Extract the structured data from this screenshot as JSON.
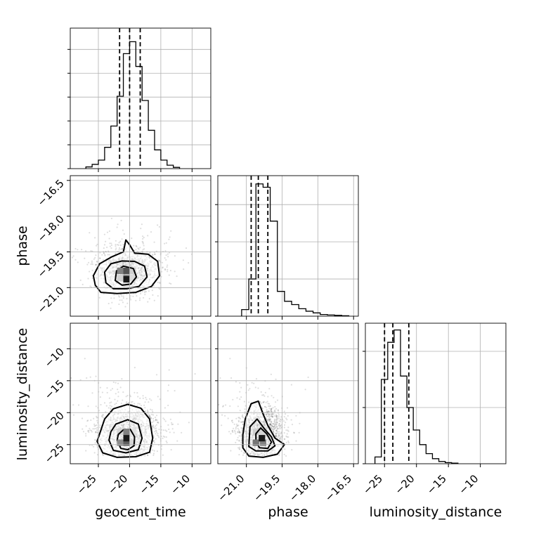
{
  "chart_data": {
    "type": "scatter",
    "title": "",
    "parameters": [
      "geocent_time",
      "phase",
      "luminosity_distance"
    ],
    "axis_labels": {
      "geocent_time": "geocent_time",
      "phase": "phase",
      "luminosity_distance": "luminosity_distance"
    },
    "ranges": {
      "geocent_time": [
        -29.5,
        -7.0
      ],
      "phase": [
        -22.2,
        -16.3
      ],
      "luminosity_distance": [
        -28.0,
        -6.0
      ]
    },
    "ticks": {
      "geocent_time": [
        -25,
        -20,
        -15,
        -10
      ],
      "phase": [
        -21.0,
        -19.5,
        -18.0,
        -16.5
      ],
      "luminosity_distance": [
        -25,
        -20,
        -15,
        -10
      ]
    },
    "tick_labels": {
      "geocent_time": [
        "−25",
        "−20",
        "−15",
        "−10"
      ],
      "phase": [
        "−21.0",
        "−19.5",
        "−18.0",
        "−16.5"
      ],
      "luminosity_distance": [
        "−25",
        "−20",
        "−15",
        "−10"
      ]
    },
    "quantiles": {
      "geocent_time": [
        -21.6,
        -20.0,
        -18.3
      ],
      "phase": [
        -20.8,
        -20.5,
        -20.1
      ],
      "luminosity_distance": [
        -25.0,
        -23.7,
        -21.2
      ]
    },
    "histograms": {
      "geocent_time": {
        "bins": [
          -27,
          -26,
          -25,
          -24,
          -23,
          -22,
          -21,
          -20,
          -19,
          -18,
          -17,
          -16,
          -15,
          -14,
          -13,
          -12
        ],
        "counts": [
          0.2,
          0.5,
          1.0,
          2.5,
          5.0,
          8.5,
          13.5,
          14.9,
          12.0,
          8.0,
          4.5,
          2.2,
          1.0,
          0.4,
          0.15
        ]
      },
      "phase": {
        "bins": [
          -21.2,
          -20.9,
          -20.6,
          -20.3,
          -20.0,
          -19.7,
          -19.4,
          -19.1,
          -18.8,
          -18.5,
          -18.2,
          -17.9,
          -17.6,
          -17.3,
          -17.0,
          -16.7
        ],
        "counts": [
          0.8,
          4.5,
          16.0,
          15.6,
          11.5,
          3.0,
          1.8,
          1.4,
          0.9,
          0.6,
          0.4,
          0.2,
          0.15,
          0.1,
          0.05
        ]
      },
      "luminosity_distance": {
        "bins": [
          -26.5,
          -25.5,
          -24.5,
          -23.5,
          -22.5,
          -21.5,
          -20.5,
          -19.5,
          -18.5,
          -17.5,
          -16.5,
          -15.5,
          -14.5,
          -13.5
        ],
        "counts": [
          0.6,
          7.5,
          10.8,
          11.9,
          7.8,
          5.0,
          3.0,
          1.7,
          0.9,
          0.45,
          0.2,
          0.1,
          0.05
        ]
      }
    },
    "histogram_ymax": {
      "geocent_time": 16.5,
      "phase": 17.0,
      "luminosity_distance": 12.5
    },
    "histogram_yticks": {
      "geocent_time": [
        0,
        2.8,
        5.6,
        8.4,
        11.2,
        14.0
      ],
      "phase": [
        0,
        4.5,
        9.0,
        13.5
      ],
      "luminosity_distance": [
        0,
        5,
        10
      ]
    },
    "joint": [
      {
        "x": "geocent_time",
        "y": "phase",
        "mean": [
          -20.3,
          -20.35
        ],
        "sd": [
          2.4,
          0.45
        ],
        "density_cells": [
          {
            "x": -21.5,
            "y": -20.6,
            "v": 0.45
          },
          {
            "x": -20.5,
            "y": -20.6,
            "v": 0.55
          },
          {
            "x": -19.5,
            "y": -20.6,
            "v": 0.35
          },
          {
            "x": -21.5,
            "y": -20.3,
            "v": 0.55
          },
          {
            "x": -20.5,
            "y": -20.3,
            "v": 0.75
          },
          {
            "x": -19.5,
            "y": -20.3,
            "v": 0.45
          },
          {
            "x": -20.5,
            "y": -20.9,
            "v": 0.25
          },
          {
            "x": -20.5,
            "y": -20.65,
            "v": 1.0
          }
        ],
        "contours": [
          [
            [
              -25.5,
              -20.9
            ],
            [
              -24.6,
              -21.2
            ],
            [
              -22.0,
              -21.25
            ],
            [
              -19.0,
              -21.2
            ],
            [
              -16.5,
              -20.95
            ],
            [
              -15.2,
              -20.5
            ],
            [
              -15.5,
              -19.9
            ],
            [
              -17.0,
              -19.6
            ],
            [
              -19.2,
              -19.55
            ],
            [
              -20.0,
              -19.2
            ],
            [
              -20.6,
              -19.0
            ],
            [
              -21.0,
              -19.5
            ],
            [
              -22.8,
              -19.7
            ],
            [
              -24.8,
              -20.0
            ],
            [
              -25.8,
              -20.5
            ],
            [
              -25.5,
              -20.9
            ]
          ],
          [
            [
              -23.8,
              -20.8
            ],
            [
              -22.6,
              -21.05
            ],
            [
              -20.5,
              -21.05
            ],
            [
              -18.5,
              -20.95
            ],
            [
              -17.2,
              -20.55
            ],
            [
              -17.6,
              -20.1
            ],
            [
              -19.2,
              -19.9
            ],
            [
              -21.2,
              -19.88
            ],
            [
              -23.0,
              -20.0
            ],
            [
              -24.0,
              -20.35
            ],
            [
              -23.8,
              -20.8
            ]
          ],
          [
            [
              -22.3,
              -20.7
            ],
            [
              -21.2,
              -20.9
            ],
            [
              -19.8,
              -20.85
            ],
            [
              -18.9,
              -20.55
            ],
            [
              -19.4,
              -20.2
            ],
            [
              -21.0,
              -20.1
            ],
            [
              -22.1,
              -20.3
            ],
            [
              -22.3,
              -20.7
            ]
          ]
        ]
      },
      {
        "x": "geocent_time",
        "y": "luminosity_distance",
        "mean": [
          -20.3,
          -23.3
        ],
        "sd": [
          2.4,
          2.0
        ],
        "density_cells": [
          {
            "x": -21.5,
            "y": -23.0,
            "v": 0.4
          },
          {
            "x": -20.5,
            "y": -23.0,
            "v": 0.55
          },
          {
            "x": -19.5,
            "y": -23.0,
            "v": 0.3
          },
          {
            "x": -21.5,
            "y": -24.7,
            "v": 0.5
          },
          {
            "x": -20.5,
            "y": -24.7,
            "v": 0.7
          },
          {
            "x": -19.5,
            "y": -24.7,
            "v": 0.4
          },
          {
            "x": -20.5,
            "y": -24.0,
            "v": 1.0
          }
        ],
        "contours": [
          [
            [
              -25.2,
              -24.5
            ],
            [
              -24.3,
              -26.3
            ],
            [
              -22.0,
              -27.0
            ],
            [
              -19.0,
              -26.9
            ],
            [
              -16.8,
              -26.2
            ],
            [
              -16.3,
              -24.0
            ],
            [
              -16.8,
              -21.0
            ],
            [
              -18.2,
              -19.3
            ],
            [
              -20.3,
              -18.7
            ],
            [
              -22.6,
              -19.4
            ],
            [
              -24.0,
              -21.0
            ],
            [
              -25.2,
              -24.5
            ]
          ],
          [
            [
              -23.3,
              -24.3
            ],
            [
              -22.6,
              -25.9
            ],
            [
              -20.6,
              -26.3
            ],
            [
              -18.6,
              -25.8
            ],
            [
              -18.0,
              -24.0
            ],
            [
              -18.6,
              -21.8
            ],
            [
              -20.3,
              -21.1
            ],
            [
              -22.2,
              -21.8
            ],
            [
              -23.0,
              -23.0
            ],
            [
              -23.3,
              -24.3
            ]
          ],
          [
            [
              -22.0,
              -24.3
            ],
            [
              -21.4,
              -25.6
            ],
            [
              -20.3,
              -25.8
            ],
            [
              -19.3,
              -25.2
            ],
            [
              -19.2,
              -23.8
            ],
            [
              -19.9,
              -22.6
            ],
            [
              -21.0,
              -22.7
            ],
            [
              -21.8,
              -23.4
            ],
            [
              -22.0,
              -24.3
            ]
          ]
        ]
      },
      {
        "x": "phase",
        "y": "luminosity_distance",
        "mean": [
          -20.4,
          -23.3
        ],
        "sd": [
          0.45,
          2.0
        ],
        "density_cells": [
          {
            "x": -20.6,
            "y": -23.0,
            "v": 0.45
          },
          {
            "x": -20.3,
            "y": -23.0,
            "v": 0.4
          },
          {
            "x": -20.6,
            "y": -24.7,
            "v": 0.6
          },
          {
            "x": -20.3,
            "y": -24.7,
            "v": 0.55
          },
          {
            "x": -20.35,
            "y": -24.0,
            "v": 1.0
          }
        ],
        "contours": [
          [
            [
              -21.15,
              -25.5
            ],
            [
              -20.9,
              -26.8
            ],
            [
              -20.3,
              -27.0
            ],
            [
              -19.7,
              -26.5
            ],
            [
              -19.4,
              -25.0
            ],
            [
              -19.8,
              -24.0
            ],
            [
              -20.1,
              -22.0
            ],
            [
              -20.3,
              -20.2
            ],
            [
              -20.5,
              -18.2
            ],
            [
              -20.8,
              -18.6
            ],
            [
              -21.05,
              -21.0
            ],
            [
              -21.15,
              -23.5
            ],
            [
              -21.15,
              -25.5
            ]
          ],
          [
            [
              -20.9,
              -25.3
            ],
            [
              -20.6,
              -26.0
            ],
            [
              -20.1,
              -26.0
            ],
            [
              -19.8,
              -25.2
            ],
            [
              -19.95,
              -23.8
            ],
            [
              -20.25,
              -22.5
            ],
            [
              -20.55,
              -21.0
            ],
            [
              -20.85,
              -22.2
            ],
            [
              -20.9,
              -25.3
            ]
          ],
          [
            [
              -20.6,
              -24.5
            ],
            [
              -20.45,
              -25.5
            ],
            [
              -20.1,
              -25.6
            ],
            [
              -19.95,
              -24.6
            ],
            [
              -20.15,
              -23.3
            ],
            [
              -20.4,
              -22.4
            ],
            [
              -20.6,
              -23.3
            ],
            [
              -20.6,
              -24.5
            ]
          ]
        ]
      }
    ],
    "grid": true,
    "legend": "none"
  }
}
